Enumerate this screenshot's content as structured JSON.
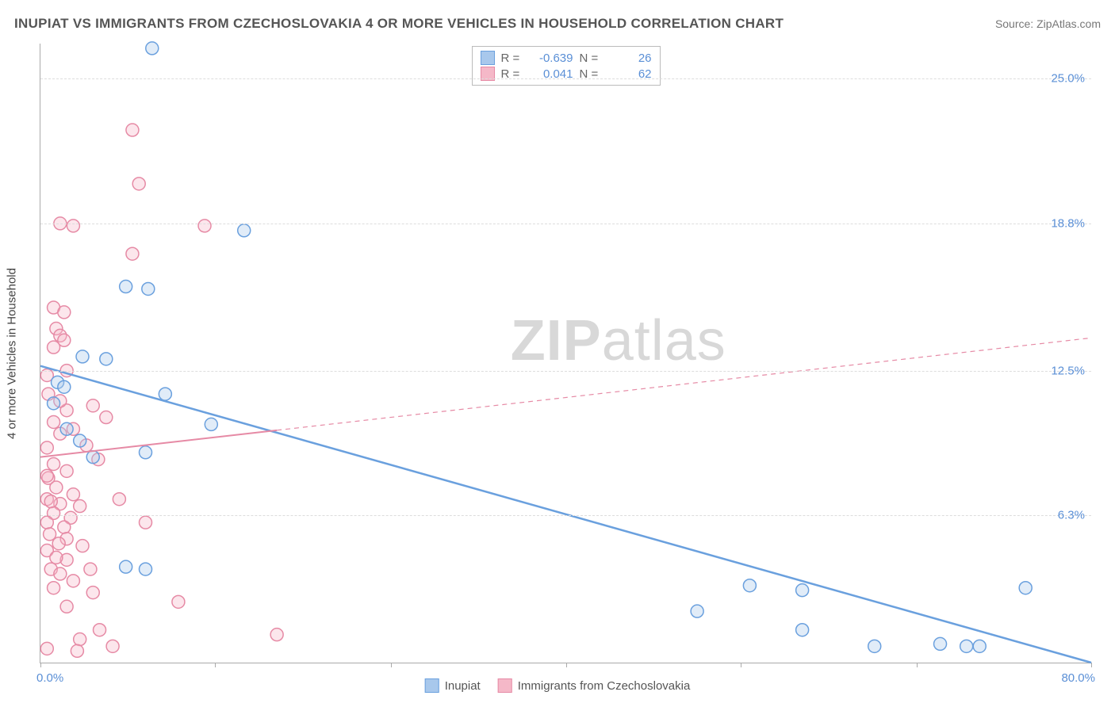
{
  "title": "INUPIAT VS IMMIGRANTS FROM CZECHOSLOVAKIA 4 OR MORE VEHICLES IN HOUSEHOLD CORRELATION CHART",
  "source_label": "Source:",
  "source_name": "ZipAtlas.com",
  "y_axis_label": "4 or more Vehicles in Household",
  "watermark": "ZIPatlas",
  "chart": {
    "type": "scatter",
    "background_color": "#ffffff",
    "grid_color": "#dddddd",
    "axis_color": "#aaaaaa",
    "tick_label_color": "#5a8fd6",
    "xlim": [
      0,
      80
    ],
    "ylim": [
      0,
      26.5
    ],
    "x_min_label": "0.0%",
    "x_max_label": "80.0%",
    "x_ticks": [
      0,
      13.3,
      26.7,
      40,
      53.3,
      66.7,
      80
    ],
    "y_ticks": [
      {
        "val": 6.3,
        "label": "6.3%"
      },
      {
        "val": 12.5,
        "label": "12.5%"
      },
      {
        "val": 18.8,
        "label": "18.8%"
      },
      {
        "val": 25.0,
        "label": "25.0%"
      }
    ],
    "marker_radius": 8,
    "series": [
      {
        "name": "Inupiat",
        "color": "#6aa0de",
        "fill": "#a8c8ec",
        "R": "-0.639",
        "N": "26",
        "trend": {
          "x1": 0,
          "y1": 12.7,
          "x2": 80,
          "y2": 0.0,
          "width": 2.5,
          "dash": "none"
        },
        "points": [
          [
            8.5,
            26.3
          ],
          [
            15.5,
            18.5
          ],
          [
            6.5,
            16.1
          ],
          [
            8.2,
            16.0
          ],
          [
            3.2,
            13.1
          ],
          [
            5.0,
            13.0
          ],
          [
            1.3,
            12.0
          ],
          [
            1.8,
            11.8
          ],
          [
            1.0,
            11.1
          ],
          [
            9.5,
            11.5
          ],
          [
            13.0,
            10.2
          ],
          [
            8.0,
            9.0
          ],
          [
            6.5,
            4.1
          ],
          [
            8.0,
            4.0
          ],
          [
            54.0,
            3.3
          ],
          [
            58.0,
            3.1
          ],
          [
            50.0,
            2.2
          ],
          [
            58.0,
            1.4
          ],
          [
            68.5,
            0.8
          ],
          [
            71.5,
            0.7
          ],
          [
            75.0,
            3.2
          ],
          [
            63.5,
            0.7
          ],
          [
            70.5,
            0.7
          ],
          [
            3.0,
            9.5
          ],
          [
            2.0,
            10.0
          ],
          [
            4.0,
            8.8
          ]
        ]
      },
      {
        "name": "Immigrants from Czechoslovakia",
        "color": "#e68aa5",
        "fill": "#f5b8c8",
        "R": "0.041",
        "N": "62",
        "trend": {
          "x1": 0,
          "y1": 8.8,
          "x2": 80,
          "y2": 13.9,
          "width": 2,
          "dash": "solid_then_dash",
          "solid_until": 18
        },
        "points": [
          [
            7.0,
            22.8
          ],
          [
            7.5,
            20.5
          ],
          [
            1.5,
            18.8
          ],
          [
            2.5,
            18.7
          ],
          [
            12.5,
            18.7
          ],
          [
            7.0,
            17.5
          ],
          [
            1.0,
            15.2
          ],
          [
            1.8,
            15.0
          ],
          [
            1.2,
            14.3
          ],
          [
            1.5,
            14.0
          ],
          [
            1.0,
            13.5
          ],
          [
            0.5,
            12.3
          ],
          [
            4.0,
            11.0
          ],
          [
            5.0,
            10.5
          ],
          [
            2.0,
            10.8
          ],
          [
            1.0,
            10.3
          ],
          [
            2.5,
            10.0
          ],
          [
            1.5,
            9.8
          ],
          [
            0.5,
            9.2
          ],
          [
            3.5,
            9.3
          ],
          [
            4.4,
            8.7
          ],
          [
            1.0,
            8.5
          ],
          [
            2.0,
            8.2
          ],
          [
            0.6,
            7.9
          ],
          [
            1.2,
            7.5
          ],
          [
            2.5,
            7.2
          ],
          [
            0.5,
            7.0
          ],
          [
            1.5,
            6.8
          ],
          [
            0.8,
            6.9
          ],
          [
            3.0,
            6.7
          ],
          [
            1.0,
            6.4
          ],
          [
            2.3,
            6.2
          ],
          [
            0.5,
            6.0
          ],
          [
            1.8,
            5.8
          ],
          [
            6.0,
            7.0
          ],
          [
            0.7,
            5.5
          ],
          [
            2.0,
            5.3
          ],
          [
            1.4,
            5.1
          ],
          [
            3.2,
            5.0
          ],
          [
            0.5,
            4.8
          ],
          [
            2.0,
            4.4
          ],
          [
            1.2,
            4.5
          ],
          [
            3.8,
            4.0
          ],
          [
            2.5,
            3.5
          ],
          [
            1.0,
            3.2
          ],
          [
            4.0,
            3.0
          ],
          [
            10.5,
            2.6
          ],
          [
            2.0,
            2.4
          ],
          [
            4.5,
            1.4
          ],
          [
            3.0,
            1.0
          ],
          [
            5.5,
            0.7
          ],
          [
            18.0,
            1.2
          ],
          [
            8.0,
            6.0
          ],
          [
            0.6,
            11.5
          ],
          [
            1.5,
            11.2
          ],
          [
            2.0,
            12.5
          ],
          [
            0.8,
            4.0
          ],
          [
            1.5,
            3.8
          ],
          [
            0.5,
            0.6
          ],
          [
            2.8,
            0.5
          ],
          [
            1.8,
            13.8
          ],
          [
            0.5,
            8.0
          ]
        ]
      }
    ]
  }
}
